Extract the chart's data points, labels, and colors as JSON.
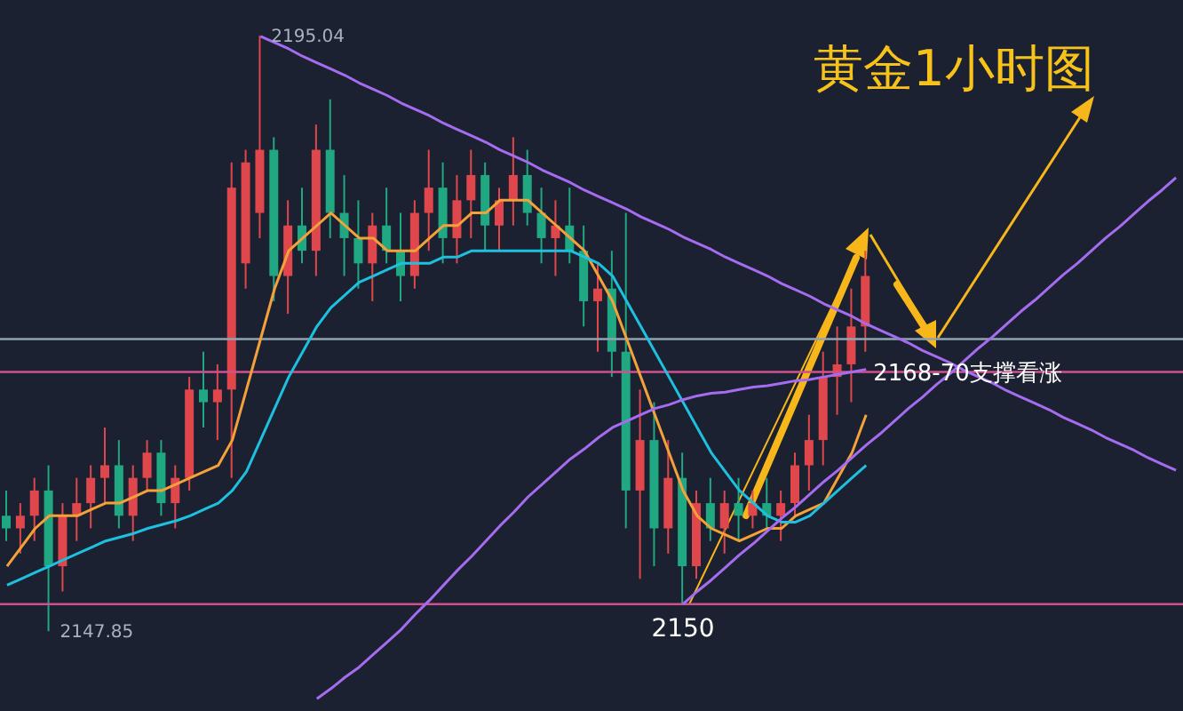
{
  "chart_data": {
    "type": "candlestick",
    "title": "黄金1小时图",
    "categories": [
      null,
      null,
      null,
      null,
      null,
      null,
      null,
      null,
      null,
      null,
      null,
      null,
      null,
      null,
      null,
      null,
      null,
      null,
      null,
      null,
      null,
      null,
      null,
      null,
      null,
      null,
      null,
      null,
      null,
      null,
      null,
      null,
      null,
      null,
      null,
      null,
      null,
      null,
      null,
      null,
      null,
      null,
      null,
      null,
      null,
      null,
      null,
      null,
      null,
      null,
      null,
      null,
      null,
      null,
      null,
      null,
      null,
      null,
      null,
      null,
      null,
      null,
      null,
      null,
      null,
      null,
      null,
      null,
      null,
      null,
      null,
      null,
      null,
      null,
      null,
      null,
      null,
      null,
      null,
      null,
      null,
      null,
      null,
      null
    ],
    "ohlc": [
      [
        2157,
        2159,
        2155,
        2156
      ],
      [
        2156,
        2158,
        2154,
        2157
      ],
      [
        2157,
        2160,
        2155,
        2159
      ],
      [
        2159,
        2161,
        2147.85,
        2153
      ],
      [
        2153,
        2158,
        2151,
        2157
      ],
      [
        2157,
        2160,
        2155,
        2158
      ],
      [
        2158,
        2161,
        2156,
        2160
      ],
      [
        2160,
        2164,
        2158,
        2161
      ],
      [
        2161,
        2163,
        2156,
        2157
      ],
      [
        2157,
        2161,
        2155,
        2160
      ],
      [
        2160,
        2163,
        2159,
        2162
      ],
      [
        2162,
        2163,
        2157,
        2158
      ],
      [
        2158,
        2161,
        2156,
        2160
      ],
      [
        2160,
        2168,
        2159,
        2167
      ],
      [
        2167,
        2170,
        2164,
        2166
      ],
      [
        2166,
        2169,
        2163,
        2167
      ],
      [
        2167,
        2185,
        2160,
        2183
      ],
      [
        2177,
        2186,
        2175,
        2185
      ],
      [
        2181,
        2195.04,
        2179,
        2186
      ],
      [
        2186,
        2187,
        2174,
        2176
      ],
      [
        2176,
        2182,
        2173,
        2180
      ],
      [
        2180,
        2183,
        2177,
        2178
      ],
      [
        2178,
        2188,
        2176,
        2186
      ],
      [
        2186,
        2190,
        2179,
        2181
      ],
      [
        2181,
        2184,
        2176,
        2179
      ],
      [
        2179,
        2182,
        2175,
        2177
      ],
      [
        2177,
        2181,
        2174,
        2180
      ],
      [
        2180,
        2183,
        2177,
        2178
      ],
      [
        2178,
        2181,
        2174,
        2176
      ],
      [
        2176,
        2182,
        2175,
        2181
      ],
      [
        2181,
        2186,
        2178,
        2183
      ],
      [
        2183,
        2185,
        2177,
        2179
      ],
      [
        2179,
        2184,
        2177,
        2182
      ],
      [
        2182,
        2186,
        2179,
        2184
      ],
      [
        2184,
        2185,
        2178,
        2180
      ],
      [
        2180,
        2183,
        2178,
        2182
      ],
      [
        2182,
        2187,
        2180,
        2184
      ],
      [
        2184,
        2186,
        2180,
        2181
      ],
      [
        2181,
        2183,
        2177,
        2179
      ],
      [
        2179,
        2182,
        2176,
        2180
      ],
      [
        2180,
        2183,
        2177,
        2178
      ],
      [
        2178,
        2180,
        2172,
        2174
      ],
      [
        2174,
        2177,
        2170,
        2175
      ],
      [
        2175,
        2178,
        2168,
        2170
      ],
      [
        2170,
        2181,
        2156,
        2159
      ],
      [
        2159,
        2167,
        2152,
        2163
      ],
      [
        2163,
        2166,
        2153,
        2156
      ],
      [
        2156,
        2163,
        2154,
        2160
      ],
      [
        2160,
        2162,
        2150,
        2153
      ],
      [
        2153,
        2159,
        2152,
        2158
      ],
      [
        2158,
        2160,
        2155,
        2156
      ],
      [
        2156,
        2159,
        2154,
        2158
      ],
      [
        2158,
        2160,
        2155,
        2157
      ],
      [
        2157,
        2159,
        2156,
        2158
      ],
      [
        2158,
        2160,
        2156,
        2157
      ],
      [
        2157,
        2159,
        2155,
        2158
      ],
      [
        2158,
        2162,
        2157,
        2161
      ],
      [
        2161,
        2165,
        2159,
        2163
      ],
      [
        2163,
        2170,
        2161,
        2168
      ],
      [
        2168,
        2172,
        2165,
        2169
      ],
      [
        2169,
        2175,
        2166,
        2172
      ],
      [
        2172,
        2178,
        2170,
        2176
      ],
      null,
      null,
      null,
      null,
      null,
      null,
      null,
      null,
      null,
      null,
      null,
      null,
      null,
      null,
      null,
      null,
      null,
      null,
      null,
      null,
      null,
      null
    ],
    "colors": [
      "#1fa882",
      "#e0474c",
      "#e0474c",
      "#1fa882",
      "#e0474c",
      "#e0474c",
      "#e0474c",
      "#e0474c",
      "#1fa882",
      "#e0474c",
      "#e0474c",
      "#1fa882",
      "#e0474c",
      "#e0474c",
      "#1fa882",
      "#e0474c",
      "#e0474c",
      "#e0474c",
      "#e0474c",
      "#1fa882",
      "#e0474c",
      "#1fa882",
      "#e0474c",
      "#1fa882",
      "#1fa882",
      "#1fa882",
      "#e0474c",
      "#1fa882",
      "#1fa882",
      "#e0474c",
      "#e0474c",
      "#1fa882",
      "#e0474c",
      "#e0474c",
      "#1fa882",
      "#e0474c",
      "#e0474c",
      "#1fa882",
      "#1fa882",
      "#e0474c",
      "#1fa882",
      "#1fa882",
      "#e0474c",
      "#1fa882",
      "#1fa882",
      "#e0474c",
      "#1fa882",
      "#e0474c",
      "#1fa882",
      "#e0474c",
      "#1fa882",
      "#e0474c",
      "#1fa882",
      "#e0474c",
      "#1fa882",
      "#e0474c",
      "#e0474c",
      "#e0474c",
      "#e0474c",
      "#e0474c",
      "#e0474c",
      "#e0474c",
      null,
      null,
      null,
      null,
      null,
      null,
      null,
      null,
      null,
      null,
      null,
      null,
      null,
      null,
      null,
      null,
      null,
      null,
      null,
      null,
      null,
      null
    ],
    "series": [
      {
        "type": "line",
        "color": "#f5a13a",
        "values": [
          2153,
          2154.5,
          2156,
          2157,
          2157,
          2157,
          2157.5,
          2158,
          2158,
          2158.5,
          2159,
          2159,
          2159.5,
          2160,
          2160.5,
          2161,
          2163,
          2167,
          2171,
          2175,
          2178,
          2179,
          2180,
          2181,
          2180,
          2179,
          2179,
          2178,
          2178,
          2178,
          2179,
          2180,
          2180,
          2181,
          2181,
          2182,
          2182,
          2182,
          2181,
          2180,
          2179,
          2178,
          2176,
          2174,
          2171,
          2168,
          2165,
          2162,
          2159,
          2157,
          2156,
          2155.5,
          2155,
          2155.5,
          2156,
          2156,
          2157,
          2157.5,
          2158,
          2160,
          2162,
          2165,
          null,
          null,
          null,
          null,
          null,
          null,
          null,
          null,
          null,
          null,
          null,
          null,
          null,
          null,
          null,
          null,
          null,
          null,
          null,
          null,
          null,
          null
        ]
      },
      {
        "type": "line",
        "color": "#1ec0e0",
        "values": [
          2151.5,
          2152,
          2152.5,
          2153,
          2153.5,
          2154,
          2154.5,
          2155,
          2155.3,
          2155.6,
          2156,
          2156.3,
          2156.6,
          2157,
          2157.5,
          2158,
          2159,
          2160.5,
          2163,
          2165.5,
          2168,
          2170,
          2172,
          2173.5,
          2174.5,
          2175.5,
          2176,
          2176.5,
          2177,
          2177,
          2177,
          2177.5,
          2177.5,
          2178,
          2178,
          2178,
          2178,
          2178,
          2178,
          2178,
          2178,
          2177.5,
          2177,
          2176,
          2174,
          2172,
          2170,
          2168,
          2166,
          2164,
          2162,
          2160.5,
          2159,
          2158,
          2157,
          2156.5,
          2156.5,
          2157,
          2158,
          2159,
          2160,
          2161,
          null,
          null,
          null,
          null,
          null,
          null,
          null,
          null,
          null,
          null,
          null,
          null,
          null,
          null,
          null,
          null,
          null,
          null,
          null,
          null,
          null,
          null
        ]
      },
      {
        "type": "line",
        "color": "#a66cf0",
        "values": [
          null,
          null,
          null,
          null,
          null,
          null,
          null,
          null,
          null,
          null,
          null,
          null,
          null,
          null,
          null,
          null,
          null,
          null,
          null,
          null,
          null,
          null,
          2142.5,
          2143.3,
          2144.2,
          2145,
          2146,
          2147,
          2148,
          2149.2,
          2150.3,
          2151.5,
          2152.7,
          2153.8,
          2155,
          2156.2,
          2157.3,
          2158.5,
          2159.5,
          2160.5,
          2161.5,
          2162.3,
          2163.2,
          2164,
          2164.5,
          2165,
          2165.5,
          2165.8,
          2166.2,
          2166.5,
          2166.7,
          2166.8,
          2167,
          2167.2,
          2167.3,
          2167.5,
          2167.7,
          2167.8,
          2168,
          2168.2,
          2168.4,
          2168.6,
          null,
          null,
          null,
          null,
          null,
          null,
          null,
          null,
          null,
          null,
          null,
          null,
          null,
          null,
          null,
          null,
          null,
          null,
          null,
          null,
          null,
          null
        ]
      },
      {
        "type": "line",
        "color": "#a66cf0",
        "values": [
          null,
          null,
          null,
          null,
          null,
          null,
          null,
          null,
          null,
          null,
          null,
          null,
          null,
          null,
          null,
          null,
          null,
          null,
          2195.0,
          2194.5,
          2194.0,
          2193.4,
          2192.9,
          2192.4,
          2191.9,
          2191.3,
          2190.8,
          2190.3,
          2189.7,
          2189.2,
          2188.7,
          2188.1,
          2187.6,
          2187.1,
          2186.6,
          2186.0,
          2185.5,
          2185.0,
          2184.4,
          2183.9,
          2183.4,
          2182.8,
          2182.3,
          2181.8,
          2181.3,
          2180.7,
          2180.2,
          2179.7,
          2179.1,
          2178.6,
          2178.1,
          2177.5,
          2177.0,
          2176.5,
          2176.0,
          2175.4,
          2174.9,
          2174.4,
          2173.8,
          2173.3,
          2172.8,
          2172.2,
          2171.7,
          2171.2,
          2170.7,
          2170.1,
          2169.6,
          2169.1,
          2168.5,
          2168.0,
          2167.5,
          2166.9,
          2166.4,
          2165.9,
          2165.4,
          2164.8,
          2164.3,
          2163.8,
          2163.2,
          2162.7,
          2162.2,
          2161.6,
          2161.1,
          2160.6
        ]
      },
      {
        "type": "line",
        "color": "#a66cf0",
        "values": [
          null,
          null,
          null,
          null,
          null,
          null,
          null,
          null,
          null,
          null,
          null,
          null,
          null,
          null,
          null,
          null,
          null,
          null,
          null,
          null,
          null,
          null,
          null,
          null,
          null,
          null,
          null,
          null,
          null,
          null,
          null,
          null,
          null,
          null,
          null,
          null,
          null,
          null,
          null,
          null,
          null,
          null,
          null,
          null,
          null,
          null,
          null,
          null,
          2150.0,
          2151.0,
          2151.9,
          2152.9,
          2153.9,
          2154.8,
          2155.8,
          2156.8,
          2157.7,
          2158.7,
          2159.7,
          2160.6,
          2161.6,
          2162.6,
          2163.5,
          2164.5,
          2165.5,
          2166.4,
          2167.4,
          2168.3,
          2169.3,
          2170.3,
          2171.2,
          2172.2,
          2173.2,
          2174.1,
          2175.1,
          2176.1,
          2177.0,
          2178.0,
          2179.0,
          2179.9,
          2180.9,
          2181.9,
          2182.8,
          2183.8
        ]
      }
    ],
    "ref_lines": [
      {
        "axis": "y",
        "value": 2171,
        "color": "#8fa3b0"
      },
      {
        "axis": "y",
        "value": 2168.4,
        "label": "2168-70支撑看涨",
        "color": "#d0508f"
      },
      {
        "axis": "y",
        "value": 2150,
        "label": "2150",
        "color": "#d0508f"
      }
    ],
    "annotations": [
      "2195.04",
      "2147.85"
    ],
    "legend": false,
    "grid": false,
    "tick_labels": false,
    "marker": "none"
  }
}
